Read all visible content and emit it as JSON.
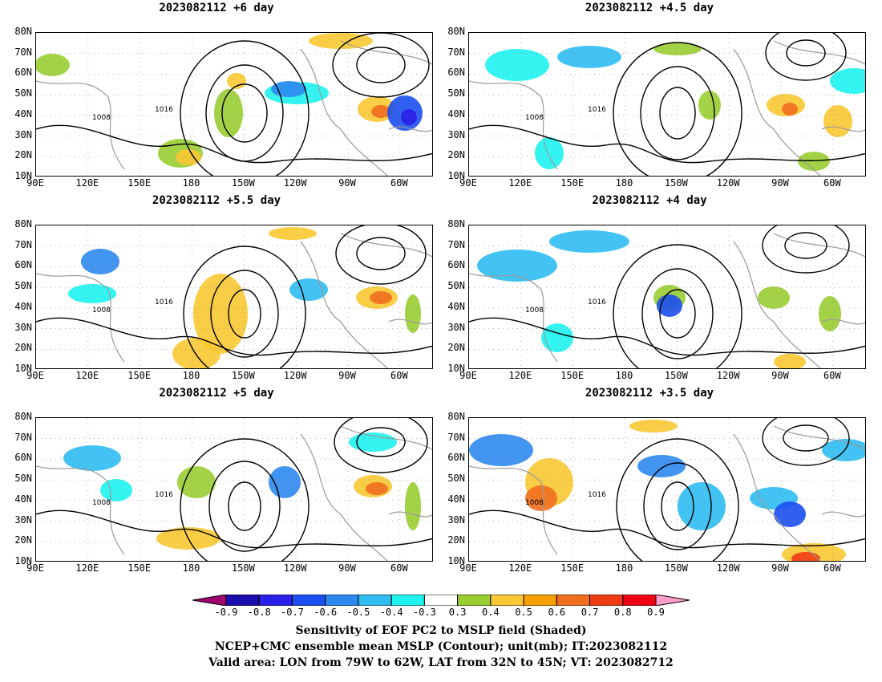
{
  "panels": [
    {
      "title": "2023082112 +6 day"
    },
    {
      "title": "2023082112 +4.5 day"
    },
    {
      "title": "2023082112 +5.5 day"
    },
    {
      "title": "2023082112 +4 day"
    },
    {
      "title": "2023082112 +5 day"
    },
    {
      "title": "2023082112 +3.5 day"
    }
  ],
  "axes": {
    "lat_labels": [
      "80N",
      "70N",
      "60N",
      "50N",
      "40N",
      "30N",
      "20N",
      "10N"
    ],
    "lon_labels": [
      "90E",
      "120E",
      "150E",
      "180",
      "150W",
      "120W",
      "90W",
      "60W"
    ]
  },
  "contour_labels": [
    "1016",
    "1008"
  ],
  "colorbar": {
    "labels": [
      "-0.9",
      "-0.8",
      "-0.7",
      "-0.6",
      "-0.5",
      "-0.4",
      "-0.3",
      "0.3",
      "0.4",
      "0.5",
      "0.6",
      "0.7",
      "0.8",
      "0.9"
    ],
    "colors": [
      "#a0006e",
      "#1a0dab",
      "#2a1fe6",
      "#1b4ff0",
      "#2d88f0",
      "#2fbdf2",
      "#1ef3f0",
      "#ffffff",
      "#9acd32",
      "#fac832",
      "#f5a000",
      "#f06e1e",
      "#f03c14",
      "#f00014",
      "#ff9ec8"
    ]
  },
  "captions": {
    "line1": "Sensitivity of EOF PC2 to MSLP field (Shaded)",
    "line2": "NCEP+CMC ensemble mean MSLP (Contour); unit(mb); IT:2023082112",
    "line3": "Valid area: LON from 79W to 62W, LAT from 32N to 45N; VT: 2023082712"
  }
}
